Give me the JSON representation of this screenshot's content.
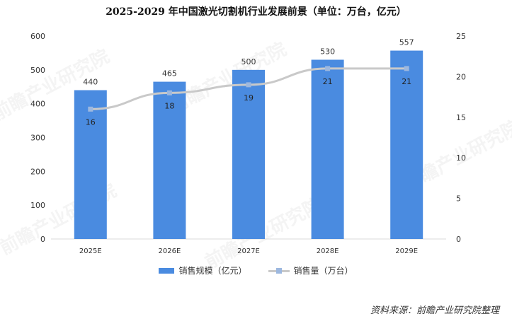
{
  "chart_data": {
    "type": "bar",
    "title": "2025-2029 年中国激光切割机行业发展前景（单位：万台，亿元）",
    "categories": [
      "2025E",
      "2026E",
      "2027E",
      "2028E",
      "2029E"
    ],
    "series": [
      {
        "name": "销售规模（亿元）",
        "kind": "bar",
        "axis": "left",
        "values": [
          440,
          465,
          500,
          530,
          557
        ]
      },
      {
        "name": "销售量（万台）",
        "kind": "line",
        "axis": "right",
        "values": [
          16,
          18,
          19,
          21,
          21
        ]
      }
    ],
    "y_left": {
      "min": 0,
      "max": 600,
      "ticks": [
        0,
        100,
        200,
        300,
        400,
        500,
        600
      ]
    },
    "y_right": {
      "min": 0,
      "max": 25,
      "ticks": [
        0,
        5,
        10,
        15,
        20,
        25
      ]
    },
    "legend_position": "bottom-center",
    "grid": false
  },
  "colors": {
    "bar": "#4a8be0",
    "line": "#c9c9c9",
    "marker": "#9db8df"
  },
  "source": "资料来源：前瞻产业研究院整理",
  "watermark_text": "前瞻产业研究院"
}
